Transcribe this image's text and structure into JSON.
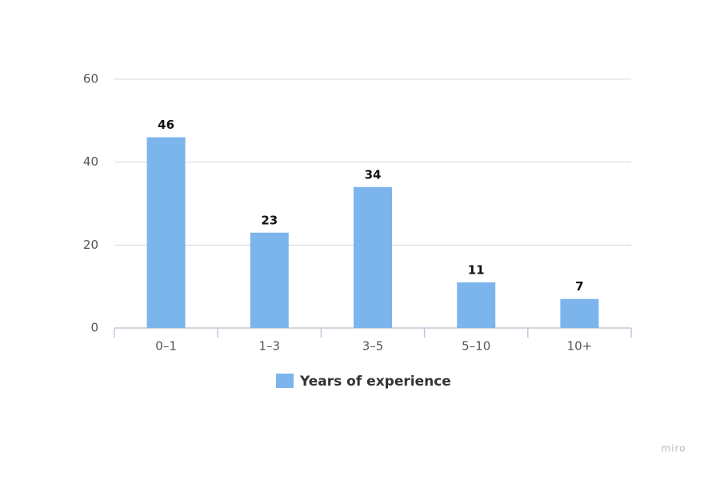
{
  "chart_data": {
    "type": "bar",
    "categories": [
      "0–1",
      "1–3",
      "3–5",
      "5–10",
      "10+"
    ],
    "series": [
      {
        "name": "Years of experience",
        "color": "#7cb5ec",
        "values": [
          46,
          23,
          34,
          11,
          7
        ]
      }
    ],
    "ylim": [
      0,
      60
    ],
    "yticks": [
      0,
      20,
      40,
      60
    ],
    "grid": true,
    "legend": "bottom"
  },
  "watermark": "miro"
}
